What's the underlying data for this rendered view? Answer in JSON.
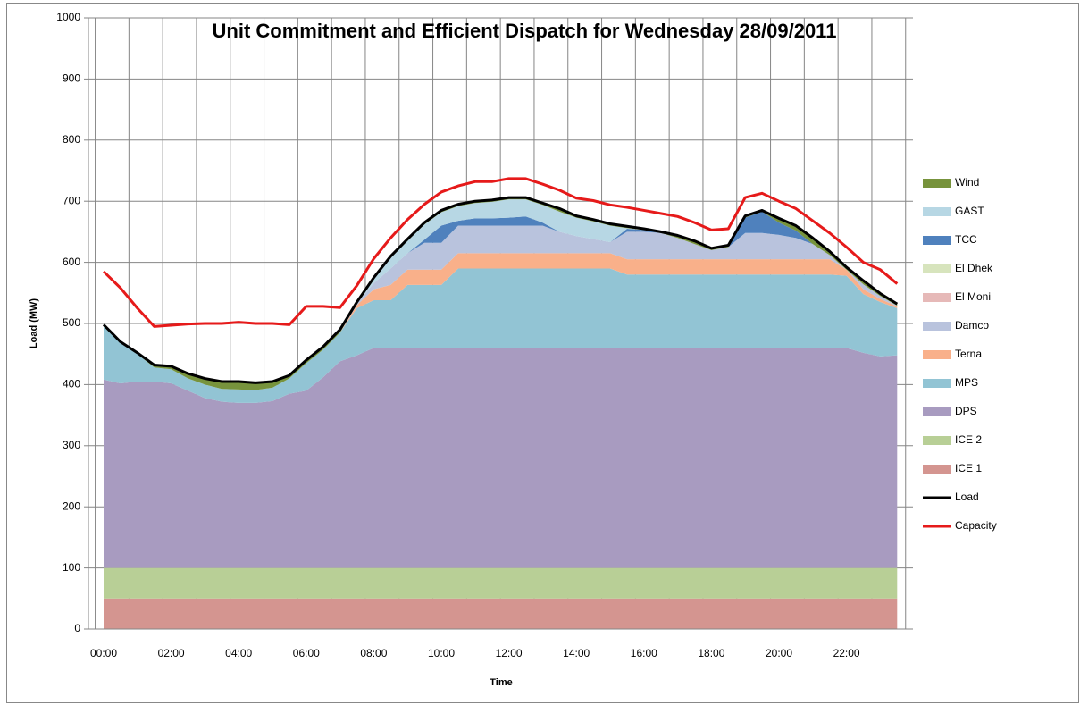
{
  "chart_data": {
    "type": "area",
    "title": "Unit Commitment and Efficient Dispatch for Wednesday 28/09/2011",
    "x_label": "Time",
    "y_label": "Load (MW)",
    "categories": [
      "00:00",
      null,
      null,
      null,
      "02:00",
      null,
      null,
      null,
      "04:00",
      null,
      null,
      null,
      "06:00",
      null,
      null,
      null,
      "08:00",
      null,
      null,
      null,
      "10:00",
      null,
      null,
      null,
      "12:00",
      null,
      null,
      null,
      "14:00",
      null,
      null,
      null,
      "16:00",
      null,
      null,
      null,
      "18:00",
      null,
      null,
      null,
      "20:00",
      null,
      null,
      null,
      "22:00",
      null,
      null,
      null
    ],
    "ylim": [
      0,
      1000
    ],
    "yticks": [
      0,
      100,
      200,
      300,
      400,
      500,
      600,
      700,
      800,
      900,
      1000
    ],
    "grid": true,
    "legend": "right",
    "series": [
      {
        "name": "ICE 1",
        "type": "area",
        "color": "#d49590",
        "values": [
          50,
          50,
          50,
          50,
          50,
          50,
          50,
          50,
          50,
          50,
          50,
          50,
          50,
          50,
          50,
          50,
          50,
          50,
          50,
          50,
          50,
          50,
          50,
          50,
          50,
          50,
          50,
          50,
          50,
          50,
          50,
          50,
          50,
          50,
          50,
          50,
          50,
          50,
          50,
          50,
          50,
          50,
          50,
          50,
          50,
          50,
          50,
          50
        ]
      },
      {
        "name": "ICE 2",
        "type": "area",
        "color": "#b8cf96",
        "values": [
          50,
          50,
          50,
          50,
          50,
          50,
          50,
          50,
          50,
          50,
          50,
          50,
          50,
          50,
          50,
          50,
          50,
          50,
          50,
          50,
          50,
          50,
          50,
          50,
          50,
          50,
          50,
          50,
          50,
          50,
          50,
          50,
          50,
          50,
          50,
          50,
          50,
          50,
          50,
          50,
          50,
          50,
          50,
          50,
          50,
          50,
          50,
          50
        ]
      },
      {
        "name": "DPS",
        "type": "area",
        "color": "#a89bc0",
        "values": [
          308,
          302,
          305,
          305,
          302,
          290,
          278,
          272,
          270,
          270,
          273,
          285,
          290,
          312,
          338,
          348,
          360,
          360,
          360,
          360,
          360,
          360,
          360,
          360,
          360,
          360,
          360,
          360,
          360,
          360,
          360,
          360,
          360,
          360,
          360,
          360,
          360,
          360,
          360,
          360,
          360,
          360,
          360,
          360,
          360,
          352,
          346,
          348
        ]
      },
      {
        "name": "MPS",
        "type": "area",
        "color": "#92c4d4",
        "values": [
          87,
          66,
          45,
          23,
          23,
          20,
          22,
          21,
          22,
          21,
          22,
          25,
          45,
          45,
          47,
          77,
          78,
          78,
          103,
          103,
          103,
          130,
          130,
          130,
          130,
          130,
          130,
          130,
          130,
          130,
          130,
          120,
          120,
          120,
          120,
          120,
          120,
          120,
          120,
          120,
          120,
          120,
          120,
          120,
          118,
          96,
          89,
          77
        ]
      },
      {
        "name": "Terna",
        "type": "area",
        "color": "#f9b08a",
        "values": [
          0,
          0,
          0,
          0,
          0,
          0,
          0,
          0,
          0,
          0,
          0,
          0,
          0,
          0,
          0,
          5,
          18,
          25,
          25,
          25,
          25,
          25,
          25,
          25,
          25,
          25,
          25,
          25,
          25,
          25,
          25,
          25,
          25,
          25,
          25,
          25,
          25,
          25,
          25,
          25,
          25,
          25,
          25,
          25,
          10,
          8,
          5,
          3
        ]
      },
      {
        "name": "Damco",
        "type": "area",
        "color": "#b9c3dd",
        "values": [
          0,
          0,
          0,
          0,
          0,
          0,
          0,
          0,
          0,
          0,
          0,
          0,
          0,
          0,
          0,
          3,
          10,
          27,
          27,
          44,
          44,
          45,
          45,
          45,
          45,
          45,
          45,
          35,
          28,
          23,
          18,
          45,
          45,
          43,
          35,
          25,
          15,
          20,
          43,
          43,
          40,
          35,
          25,
          7,
          0,
          8,
          5,
          1
        ]
      },
      {
        "name": "El Moni",
        "type": "area",
        "color": "#e6b9b8",
        "values": [
          0,
          0,
          0,
          0,
          0,
          0,
          0,
          0,
          0,
          0,
          0,
          0,
          0,
          0,
          0,
          0,
          0,
          0,
          0,
          0,
          0,
          0,
          0,
          0,
          0,
          0,
          0,
          0,
          0,
          0,
          0,
          0,
          0,
          0,
          0,
          0,
          0,
          0,
          0,
          0,
          0,
          0,
          0,
          0,
          0,
          0,
          0,
          0
        ]
      },
      {
        "name": "El Dhek",
        "type": "area",
        "color": "#d7e4bd",
        "values": [
          0,
          0,
          0,
          0,
          0,
          0,
          0,
          0,
          0,
          0,
          0,
          0,
          0,
          0,
          0,
          0,
          0,
          0,
          0,
          0,
          0,
          0,
          0,
          0,
          0,
          0,
          0,
          0,
          0,
          0,
          0,
          0,
          0,
          0,
          0,
          0,
          0,
          0,
          0,
          0,
          0,
          0,
          0,
          0,
          0,
          0,
          0,
          0
        ]
      },
      {
        "name": "TCC",
        "type": "area",
        "color": "#4f81bd",
        "values": [
          0,
          0,
          0,
          0,
          0,
          0,
          0,
          0,
          0,
          0,
          0,
          0,
          0,
          0,
          0,
          0,
          0,
          0,
          0,
          5,
          28,
          8,
          12,
          12,
          13,
          15,
          5,
          0,
          0,
          0,
          0,
          5,
          3,
          0,
          0,
          0,
          0,
          0,
          25,
          35,
          20,
          12,
          0,
          0,
          0,
          0,
          0,
          0
        ]
      },
      {
        "name": "GAST",
        "type": "area",
        "color": "#b7d7e4",
        "values": [
          0,
          0,
          0,
          0,
          0,
          0,
          0,
          0,
          0,
          0,
          0,
          0,
          0,
          0,
          0,
          0,
          6,
          17,
          20,
          25,
          22,
          24,
          25,
          27,
          30,
          28,
          29,
          33,
          30,
          29,
          27,
          1,
          0,
          0,
          0,
          0,
          0,
          0,
          0,
          0,
          0,
          0,
          0,
          0,
          0,
          0,
          0,
          0
        ]
      },
      {
        "name": "Wind",
        "type": "area",
        "color": "#77933c",
        "values": [
          3,
          2,
          2,
          4,
          5,
          8,
          10,
          12,
          13,
          12,
          10,
          5,
          5,
          5,
          5,
          2,
          3,
          3,
          3,
          3,
          3,
          3,
          3,
          3,
          3,
          3,
          3,
          5,
          3,
          3,
          3,
          3,
          2,
          2,
          4,
          5,
          3,
          3,
          3,
          2,
          7,
          8,
          10,
          6,
          4,
          6,
          4,
          3
        ]
      },
      {
        "name": "Load",
        "type": "line",
        "color": "#000000",
        "values": [
          498,
          470,
          452,
          432,
          430,
          418,
          410,
          405,
          405,
          403,
          405,
          415,
          440,
          462,
          490,
          535,
          575,
          610,
          638,
          665,
          685,
          695,
          700,
          702,
          706,
          706,
          697,
          688,
          676,
          670,
          663,
          659,
          655,
          650,
          644,
          635,
          623,
          628,
          676,
          685,
          672,
          660,
          640,
          618,
          592,
          570,
          549,
          532
        ]
      },
      {
        "name": "Capacity",
        "type": "line",
        "color": "#e61a1a",
        "values": [
          585,
          558,
          525,
          495,
          497,
          499,
          500,
          500,
          502,
          500,
          500,
          498,
          528,
          528,
          526,
          562,
          606,
          640,
          670,
          695,
          715,
          725,
          732,
          732,
          737,
          737,
          728,
          718,
          705,
          701,
          694,
          690,
          685,
          680,
          675,
          665,
          653,
          655,
          706,
          713,
          700,
          688,
          668,
          648,
          625,
          600,
          588,
          565
        ]
      }
    ]
  }
}
